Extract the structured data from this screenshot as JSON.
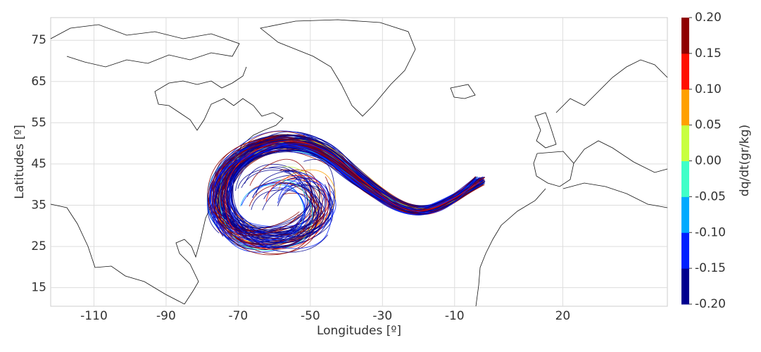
{
  "chart_data": {
    "type": "trajectory-map",
    "xlabel": "Longitudes [º]",
    "ylabel": "Latitudes [º]",
    "xlim": [
      -122,
      49
    ],
    "ylim": [
      10.5,
      80.5
    ],
    "xticks": [
      -110,
      -90,
      -70,
      -50,
      -30,
      -10,
      20
    ],
    "yticks": [
      15,
      25,
      35,
      45,
      55,
      65,
      75
    ],
    "grid": true,
    "colorbar": {
      "label": "dq/dt(gr/kg)",
      "lim": [
        -0.2,
        0.2
      ],
      "ticks": [
        {
          "value": -0.2,
          "label": "-0.20"
        },
        {
          "value": -0.15,
          "label": "-0.15"
        },
        {
          "value": -0.1,
          "label": "-0.10"
        },
        {
          "value": -0.05,
          "label": "-0.05"
        },
        {
          "value": 0,
          "label": "0.00"
        },
        {
          "value": 0.05,
          "label": "0.05"
        },
        {
          "value": 0.1,
          "label": "0.10"
        },
        {
          "value": 0.15,
          "label": "0.15"
        },
        {
          "value": 0.2,
          "label": "0.20"
        }
      ],
      "colors": [
        "#00008f",
        "#0020ff",
        "#00aaff",
        "#40ffc8",
        "#c8ff40",
        "#ffa000",
        "#ff1000",
        "#8f0000"
      ]
    }
  }
}
